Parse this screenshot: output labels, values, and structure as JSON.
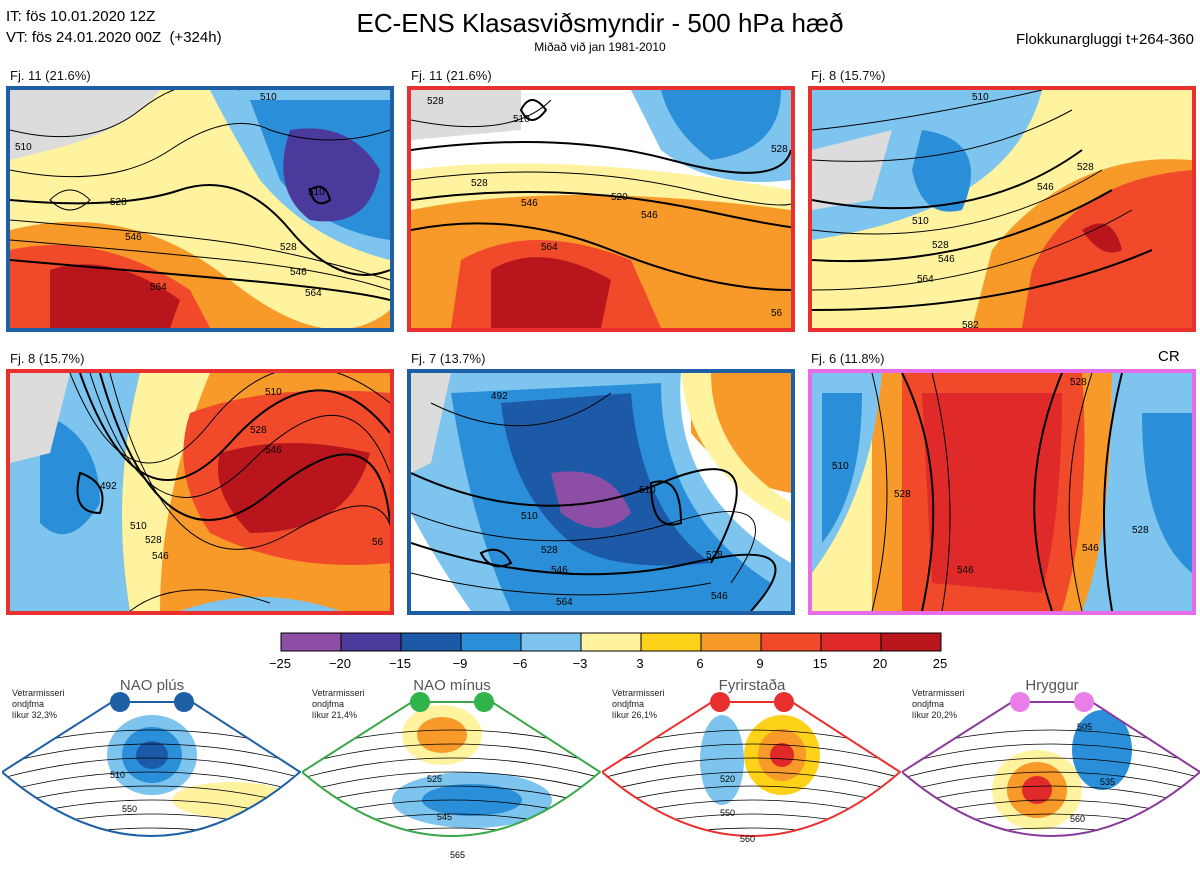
{
  "header": {
    "init_line": "IT: fös 10.01.2020 12Z",
    "valid_line": "VT: fös 24.01.2020 00Z  (+324h)",
    "title": "EC-ENS Klasasviðsmyndir - 500 hPa hæð",
    "subtitle": "Miðað við jan 1981-2010",
    "window": "Flokkunargluggi t+264-360"
  },
  "panels": [
    {
      "label": "Fj. 11 (21.6%)",
      "regime": "NAO plús",
      "border": "#1f5fa6",
      "contours": [
        "510",
        "546",
        "564",
        "528",
        "546",
        "564",
        "510",
        "510",
        "528"
      ]
    },
    {
      "label": "Fj. 11 (21.6%)",
      "regime": "Fyrirstaða",
      "border": "#e8302e",
      "contours": [
        "528",
        "510",
        "528",
        "546",
        "520",
        "546",
        "564",
        "528",
        "56"
      ]
    },
    {
      "label": "Fj. 8 (15.7%)",
      "regime": "Fyrirstaða",
      "border": "#e8302e",
      "contours": [
        "510",
        "528",
        "546",
        "564",
        "582",
        "546",
        "528",
        "510"
      ]
    },
    {
      "label": "Fj. 8 (15.7%)",
      "regime": "Fyrirstaða",
      "border": "#e8302e",
      "contours": [
        "510",
        "528",
        "546",
        "492",
        "510",
        "528",
        "546",
        "56"
      ]
    },
    {
      "label": "Fj. 7 (13.7%)",
      "regime": "NAO plús",
      "border": "#1f5fa6",
      "contours": [
        "510",
        "528",
        "546",
        "564",
        "510",
        "528",
        "546",
        "492"
      ]
    },
    {
      "label": "Fj. 6 (11.8%)",
      "regime": "Hryggur",
      "border": "#e86be8",
      "contours": [
        "510",
        "528",
        "546",
        "546",
        "528",
        "528"
      ]
    }
  ],
  "cr_label": "CR",
  "legend": {
    "ticks": [
      "−25",
      "−20",
      "−15",
      "−9",
      "−6",
      "−3",
      "3",
      "6",
      "9",
      "15",
      "20",
      "25"
    ],
    "colors": [
      "#8d4fa5",
      "#4a3a9c",
      "#1c5aa8",
      "#2a8fd8",
      "#7dc4ee",
      "#ffffff",
      "#fff3a0",
      "#ffd21a",
      "#f89a2a",
      "#f04a2a",
      "#e02a2a",
      "#b8161c"
    ]
  },
  "regimes": [
    {
      "name": "NAO plús",
      "stats": "Vetrarmisseri\nondjfma\nlíkur 32,3%",
      "color": "#1f5fa6",
      "dot": "#1f5fa6",
      "contours": [
        "510",
        "550"
      ]
    },
    {
      "name": "NAO mínus",
      "stats": "Vetrarmisseri\nondjfma\nlíkur 21,4%",
      "color": "#3aa84a",
      "dot": "#2fb34a",
      "contours": [
        "525",
        "545",
        "565"
      ]
    },
    {
      "name": "Fyrirstaða",
      "stats": "Vetrarmisseri\nondjfma\nlíkur 26,1%",
      "color": "#e8302e",
      "dot": "#e8302e",
      "contours": [
        "520",
        "550",
        "560"
      ]
    },
    {
      "name": "Hryggur",
      "stats": "Vetrarmisseri\nondjfma\nlíkur 20,2%",
      "color": "#8a3a9a",
      "dot": "#ea7ee8",
      "contours": [
        "505",
        "535",
        "560"
      ]
    }
  ]
}
